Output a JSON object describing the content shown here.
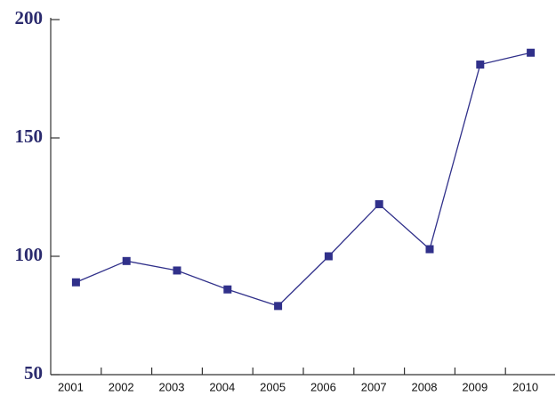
{
  "chart_data": {
    "type": "line",
    "categories": [
      "2001",
      "2002",
      "2003",
      "2004",
      "2005",
      "2006",
      "2007",
      "2008",
      "2009",
      "2010"
    ],
    "values": [
      89,
      98,
      94,
      86,
      79,
      100,
      122,
      103,
      181,
      186
    ],
    "color": "#30308a",
    "ylim": [
      50,
      200
    ],
    "yticks": [
      50,
      100,
      150,
      200
    ],
    "grid": false
  }
}
